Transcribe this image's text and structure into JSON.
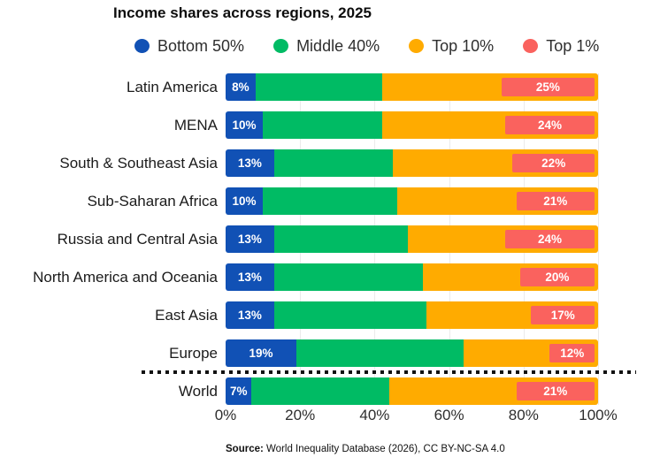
{
  "title": "Income shares across regions, 2025",
  "legend": [
    {
      "name": "bottom-50",
      "label": "Bottom 50%",
      "color": "#1151b5"
    },
    {
      "name": "middle-40",
      "label": "Middle 40%",
      "color": "#00bb64"
    },
    {
      "name": "top-10",
      "label": "Top 10%",
      "color": "#ffab00"
    },
    {
      "name": "top-1",
      "label": "Top 1%",
      "color": "#fa625e"
    }
  ],
  "source": {
    "bold_label": "Source:",
    "text": " World Inequality Database (2026), CC BY-NC-SA 4.0"
  },
  "chart_data": {
    "type": "bar",
    "subtype": "horizontal-stacked-100pct-with-top1-overlay",
    "title": "Income shares across regions, 2025",
    "categories": [
      "Latin America",
      "MENA",
      "South & Southeast Asia",
      "Sub-Saharan Africa",
      "Russia and Central Asia",
      "North America and Oceania",
      "East Asia",
      "Europe",
      "World"
    ],
    "series": [
      {
        "name": "Bottom 50%",
        "color": "#1151b5",
        "labels_shown": true,
        "values": [
          8,
          10,
          13,
          10,
          13,
          13,
          13,
          19,
          7
        ]
      },
      {
        "name": "Middle 40%",
        "color": "#00bb64",
        "labels_shown": false,
        "estimated": true,
        "values": [
          34,
          32,
          32,
          36,
          36,
          40,
          41,
          45,
          37
        ]
      },
      {
        "name": "Top 10%",
        "color": "#ffab00",
        "labels_shown": false,
        "estimated": true,
        "values": [
          58,
          58,
          55,
          54,
          51,
          47,
          46,
          36,
          56
        ]
      },
      {
        "name": "Top 1%",
        "color": "#fa625e",
        "labels_shown": true,
        "overlay": true,
        "values": [
          25,
          24,
          22,
          21,
          24,
          20,
          17,
          12,
          21
        ]
      }
    ],
    "xlim": [
      0,
      100
    ],
    "x_ticks": [
      0,
      20,
      40,
      60,
      80,
      100
    ],
    "x_tick_labels": [
      "0%",
      "20%",
      "40%",
      "60%",
      "80%",
      "100%"
    ],
    "grid": "vertical-light",
    "legend_position": "top",
    "separator_before_category": "World"
  }
}
